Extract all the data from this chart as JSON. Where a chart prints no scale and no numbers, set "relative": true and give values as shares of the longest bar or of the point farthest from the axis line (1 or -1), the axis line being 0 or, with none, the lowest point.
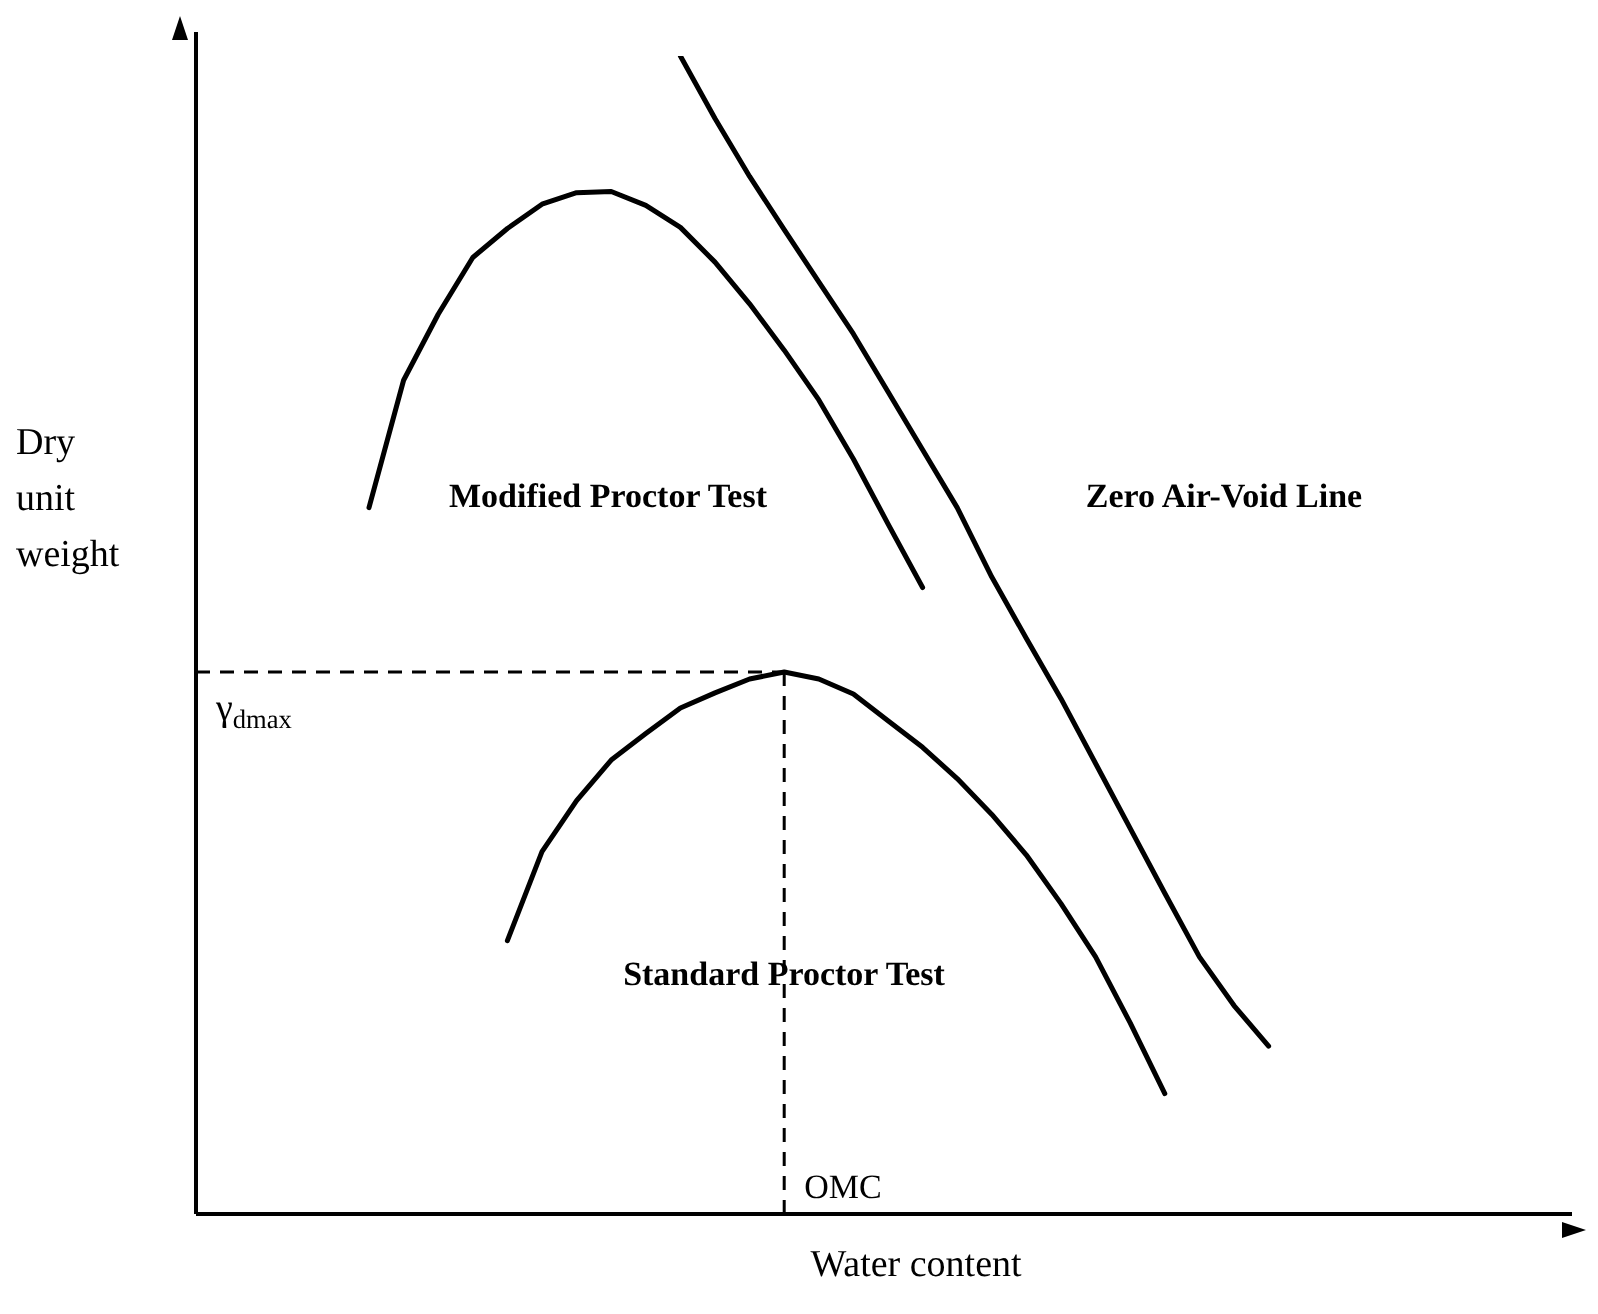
{
  "chart_data": {
    "type": "line",
    "relative": true,
    "xlabel": "Water content",
    "ylabel": "Dry unit weight",
    "grid": false,
    "legend": false,
    "marker": "none",
    "line_style": "solid",
    "categories": [
      null,
      null,
      null,
      null,
      null,
      null,
      null,
      null,
      null,
      null,
      null,
      null,
      null,
      null,
      null,
      null,
      null,
      null,
      null,
      null,
      null,
      null,
      null,
      null,
      null,
      null,
      null,
      null,
      null,
      null,
      null,
      null,
      null,
      null,
      null,
      null,
      null,
      null,
      null,
      null,
      null
    ],
    "series": [
      {
        "color": "#000000",
        "values": [
          null,
          null,
          null,
          null,
          null,
          0.61,
          0.72,
          0.777,
          0.826,
          0.851,
          0.872,
          0.882,
          0.883,
          0.871,
          0.852,
          0.822,
          0.786,
          0.746,
          0.703,
          0.652,
          0.596,
          0.541,
          null,
          null,
          null,
          null,
          null,
          null,
          null,
          null,
          null,
          null,
          null,
          null,
          null,
          null,
          null,
          null,
          null,
          null,
          null
        ]
      },
      {
        "color": "#000000",
        "values": [
          null,
          null,
          null,
          null,
          null,
          null,
          null,
          null,
          null,
          null,
          null,
          null,
          null,
          null,
          1,
          0.946,
          0.896,
          0.85,
          0.805,
          0.76,
          0.71,
          0.66,
          0.61,
          0.55,
          0.497,
          0.445,
          0.389,
          0.333,
          0.277,
          0.222,
          0.18,
          0.145,
          null,
          null,
          null,
          null,
          null,
          null,
          null,
          null,
          null
        ]
      },
      {
        "color": "#000000",
        "values": [
          null,
          null,
          null,
          null,
          null,
          null,
          null,
          null,
          null,
          0.236,
          0.313,
          0.357,
          0.392,
          0.415,
          0.437,
          0.45,
          0.462,
          0.468,
          0.462,
          0.449,
          0.426,
          0.403,
          0.376,
          0.345,
          0.31,
          0.268,
          0.222,
          0.165,
          0.104,
          null,
          null,
          null,
          null,
          null,
          null,
          null,
          null,
          null,
          null,
          null,
          null
        ]
      }
    ],
    "ref_lines": [
      {
        "axis": "y",
        "value": 0.468,
        "label": "γ$_{dmax}$",
        "line_style": "dashed"
      }
    ],
    "annotations": [
      "Modified Proctor Test",
      "Zero Air-Void Line",
      "Standard Proctor Test",
      "OMC"
    ]
  }
}
